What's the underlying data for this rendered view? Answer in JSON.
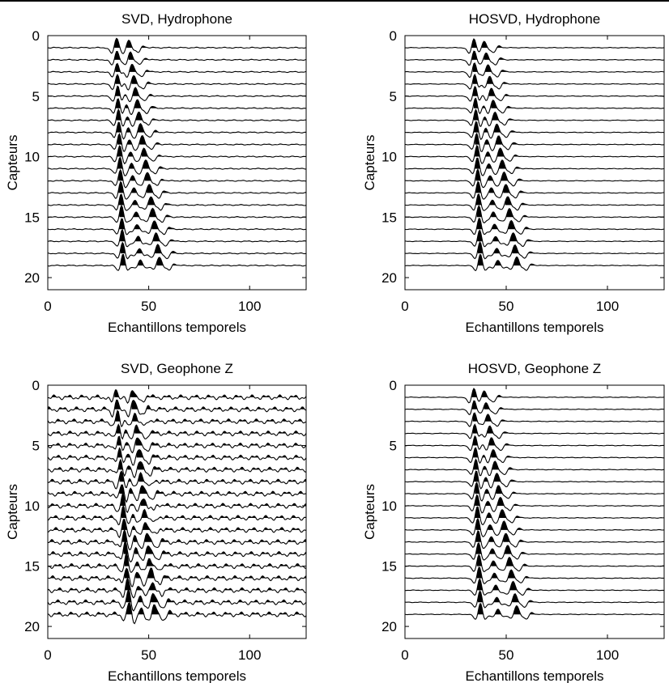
{
  "figure": {
    "x_tick_labels": [
      "0",
      "50",
      "100"
    ],
    "y_tick_labels": [
      "0",
      "5",
      "10",
      "15",
      "20"
    ],
    "colors": {
      "trace": "#000000",
      "fill": "#000000",
      "background": "#ffffff"
    }
  },
  "chart_data": [
    {
      "type": "wiggle",
      "title": "SVD, Hydrophone",
      "xlabel": "Echantillons temporels",
      "ylabel": "Capteurs",
      "xlim": [
        0,
        128
      ],
      "ylim": [
        21,
        0
      ],
      "x_ticks": [
        0,
        50,
        100
      ],
      "y_ticks": [
        0,
        5,
        10,
        15,
        20
      ],
      "trace_count": 19,
      "first_trace": 1,
      "samples": 128,
      "arrivals": {
        "direct": [
          34,
          0.18
        ],
        "secondary": [
          40,
          0.85
        ],
        "multiple": [
          36,
          0.55
        ]
      },
      "noise_level": 0.05
    },
    {
      "type": "wiggle",
      "title": "HOSVD, Hydrophone",
      "xlabel": "Echantillons temporels",
      "ylabel": "Capteurs",
      "xlim": [
        0,
        128
      ],
      "ylim": [
        21,
        0
      ],
      "x_ticks": [
        0,
        50,
        100
      ],
      "y_ticks": [
        0,
        5,
        10,
        15,
        20
      ],
      "trace_count": 19,
      "first_trace": 1,
      "samples": 128,
      "arrivals": {
        "direct": [
          34,
          0.18
        ],
        "secondary": [
          39,
          0.9
        ],
        "multiple": [
          36,
          0.55
        ]
      },
      "noise_level": 0.03
    },
    {
      "type": "wiggle",
      "title": "SVD, Geophone Z",
      "xlabel": "Echantillons temporels",
      "ylabel": "Capteurs",
      "xlim": [
        0,
        128
      ],
      "ylim": [
        21,
        0
      ],
      "x_ticks": [
        0,
        50,
        100
      ],
      "y_ticks": [
        0,
        5,
        10,
        15,
        20
      ],
      "trace_count": 19,
      "first_trace": 1,
      "samples": 128,
      "arrivals": {
        "direct": [
          34,
          0.35
        ],
        "secondary": [
          42,
          0.6
        ],
        "multiple": [
          37,
          0.5
        ]
      },
      "noise_level": 0.22
    },
    {
      "type": "wiggle",
      "title": "HOSVD, Geophone Z",
      "xlabel": "Echantillons temporels",
      "ylabel": "Capteurs",
      "xlim": [
        0,
        128
      ],
      "ylim": [
        21,
        0
      ],
      "x_ticks": [
        0,
        50,
        100
      ],
      "y_ticks": [
        0,
        5,
        10,
        15,
        20
      ],
      "trace_count": 19,
      "first_trace": 1,
      "samples": 128,
      "arrivals": {
        "direct": [
          34,
          0.18
        ],
        "secondary": [
          39,
          0.9
        ],
        "multiple": [
          36,
          0.55
        ]
      },
      "noise_level": 0.03
    }
  ]
}
